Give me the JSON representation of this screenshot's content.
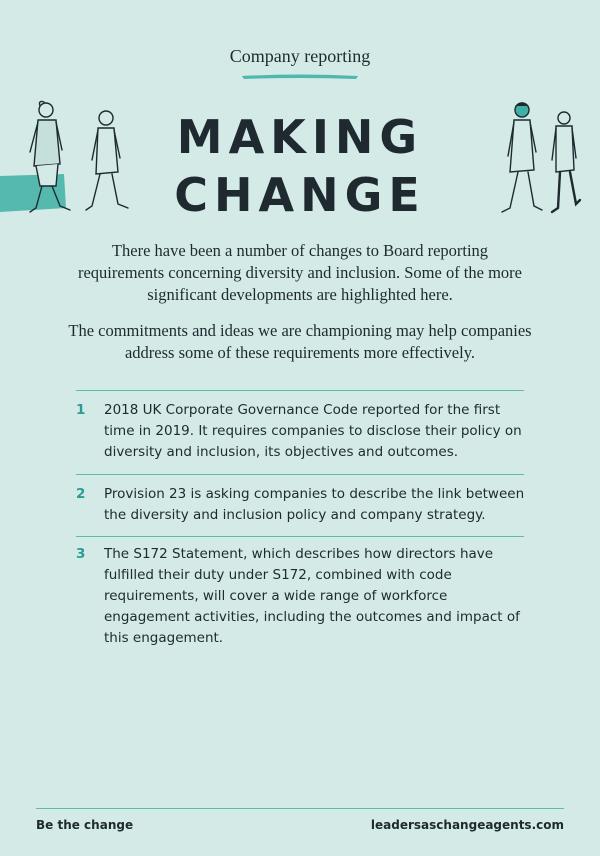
{
  "header": {
    "kicker": "Company reporting",
    "headline_line1": "MAKING",
    "headline_line2": "CHANGE"
  },
  "intro": {
    "paragraph1": "There have been a number of changes to Board reporting requirements concerning diversity and inclusion. Some of the more significant developments are highlighted here.",
    "paragraph2": "The commitments and ideas we are championing may help companies address some of these requirements more effectively."
  },
  "items": [
    {
      "number": "1",
      "text": "2018 UK Corporate Governance Code reported for the first time in 2019. It requires companies to disclose their policy on diversity and inclusion, its objectives and outcomes."
    },
    {
      "number": "2",
      "text": "Provision 23 is asking companies to describe the link between the diversity and inclusion policy and company strategy."
    },
    {
      "number": "3",
      "text": "The S172 Statement, which describes how directors have fulfilled their duty under S172, combined with code requirements, will cover a wide range of workforce engagement activities, including the outcomes and impact of this engagement."
    }
  ],
  "footer": {
    "left": "Be the change",
    "right": "leadersaschangeagents.com"
  },
  "colors": {
    "background": "#d3eae6",
    "accent": "#2b9c93",
    "text": "#1e2a30"
  }
}
